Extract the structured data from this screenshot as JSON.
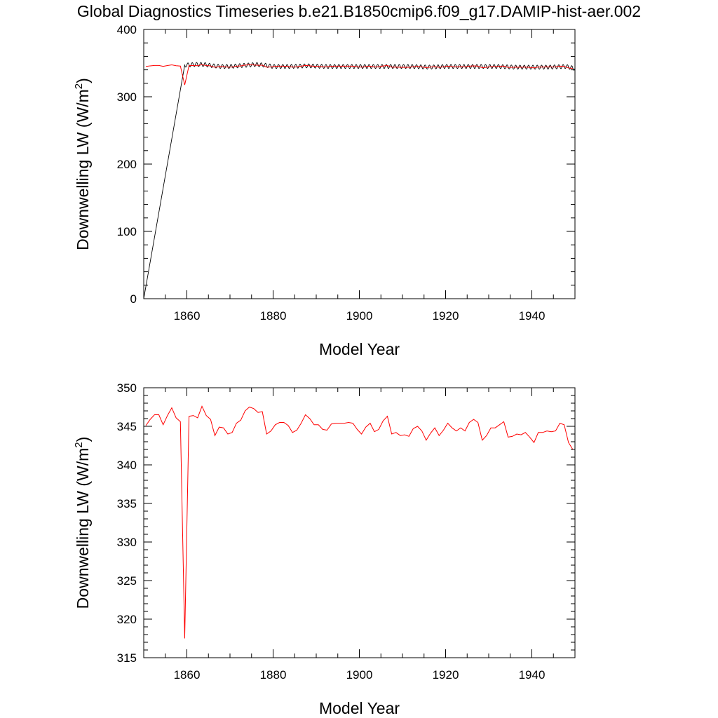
{
  "title": "Global Diagnostics Timeseries b.e21.B1850cmip6.f09_g17.DAMIP-hist-aer.002",
  "colors": {
    "monthly": "#000000",
    "annual": "#ff0000",
    "axes": "#000000",
    "background": "#ffffff"
  },
  "chart_data": [
    {
      "type": "line",
      "xlabel": "Model Year",
      "ylabel": "Downwelling LW (W/m2)",
      "xlim": [
        1850,
        1950
      ],
      "ylim": [
        0,
        400
      ],
      "xticks": [
        1860,
        1880,
        1900,
        1920,
        1940
      ],
      "yticks": [
        0,
        100,
        200,
        300,
        400
      ],
      "grid": false,
      "series": [
        {
          "style": "monthly",
          "color": "#000000",
          "x": [
            1850,
            1859.5,
            1862,
            1864,
            1866,
            1868,
            1870,
            1872,
            1874,
            1876,
            1878,
            1880,
            1884,
            1888,
            1892,
            1896,
            1900,
            1904,
            1908,
            1912,
            1916,
            1920,
            1924,
            1928,
            1932,
            1936,
            1940,
            1944,
            1948,
            1950
          ],
          "values": [
            0,
            347,
            348,
            348,
            346,
            345,
            345,
            346,
            347,
            348,
            347,
            345,
            345,
            346,
            345,
            345,
            345,
            345,
            345,
            345,
            344,
            345,
            345,
            345,
            345,
            344,
            344,
            344,
            345,
            342
          ],
          "seasonal_amplitude": 3
        },
        {
          "style": "annual",
          "color": "#ff0000",
          "x": [
            1850.5,
            1851.5,
            1852.5,
            1853.5,
            1854.5,
            1855.5,
            1856.5,
            1857.5,
            1858.5,
            1859.5,
            1860.5,
            1861.5,
            1862.5,
            1863.5,
            1864.5,
            1865.5,
            1866.5,
            1867.5,
            1868.5,
            1869.5,
            1870.5,
            1871.5,
            1872.5,
            1873.5,
            1874.5,
            1875.5,
            1876.5,
            1877.5,
            1878.5,
            1879.5,
            1880.5,
            1881.5,
            1882.5,
            1883.5,
            1884.5,
            1885.5,
            1886.5,
            1887.5,
            1888.5,
            1889.5,
            1890.5,
            1891.5,
            1892.5,
            1893.5,
            1894.5,
            1895.5,
            1896.5,
            1897.5,
            1898.5,
            1899.5,
            1900.5,
            1901.5,
            1902.5,
            1903.5,
            1904.5,
            1905.5,
            1906.5,
            1907.5,
            1908.5,
            1909.5,
            1910.5,
            1911.5,
            1912.5,
            1913.5,
            1914.5,
            1915.5,
            1916.5,
            1917.5,
            1918.5,
            1919.5,
            1920.5,
            1921.5,
            1922.5,
            1923.5,
            1924.5,
            1925.5,
            1926.5,
            1927.5,
            1928.5,
            1929.5,
            1930.5,
            1931.5,
            1932.5,
            1933.5,
            1934.5,
            1935.5,
            1936.5,
            1937.5,
            1938.5,
            1939.5,
            1940.5,
            1941.5,
            1942.5,
            1943.5,
            1944.5,
            1945.5,
            1946.5,
            1947.5,
            1948.5,
            1949.5
          ],
          "values": [
            345.1,
            345.9,
            346.5,
            346.5,
            345.2,
            346.4,
            347.4,
            346.1,
            345.6,
            317.5,
            346.3,
            346.4,
            346.1,
            347.6,
            346.4,
            345.9,
            343.8,
            344.9,
            344.8,
            344.0,
            344.2,
            345.4,
            345.8,
            347.0,
            347.5,
            347.3,
            346.8,
            346.9,
            344.0,
            344.4,
            345.2,
            345.5,
            345.5,
            345.1,
            344.2,
            344.5,
            345.4,
            346.5,
            346.0,
            345.2,
            345.2,
            344.6,
            344.5,
            345.3,
            345.4,
            345.4,
            345.4,
            345.5,
            345.4,
            344.6,
            344.0,
            344.9,
            345.4,
            344.3,
            344.6,
            345.7,
            346.3,
            344.0,
            344.2,
            343.8,
            343.9,
            343.7,
            344.7,
            345.0,
            344.4,
            343.2,
            344.1,
            344.8,
            343.8,
            344.5,
            345.4,
            344.8,
            344.4,
            344.8,
            344.4,
            345.5,
            345.9,
            345.5,
            343.2,
            343.8,
            344.8,
            344.8,
            345.2,
            345.6,
            343.6,
            343.7,
            344.0,
            343.9,
            344.2,
            343.6,
            342.9,
            344.2,
            344.2,
            344.4,
            344.3,
            344.4,
            345.4,
            345.2,
            342.9,
            342.0
          ]
        }
      ]
    },
    {
      "type": "line",
      "xlabel": "Model Year",
      "ylabel": "Downwelling LW (W/m2)",
      "xlim": [
        1850,
        1950
      ],
      "ylim": [
        315,
        350
      ],
      "xticks": [
        1860,
        1880,
        1900,
        1920,
        1940
      ],
      "yticks": [
        315,
        320,
        325,
        330,
        335,
        340,
        345,
        350
      ],
      "grid": false,
      "series": [
        {
          "style": "annual",
          "color": "#ff0000",
          "ref": 0
        }
      ]
    }
  ]
}
